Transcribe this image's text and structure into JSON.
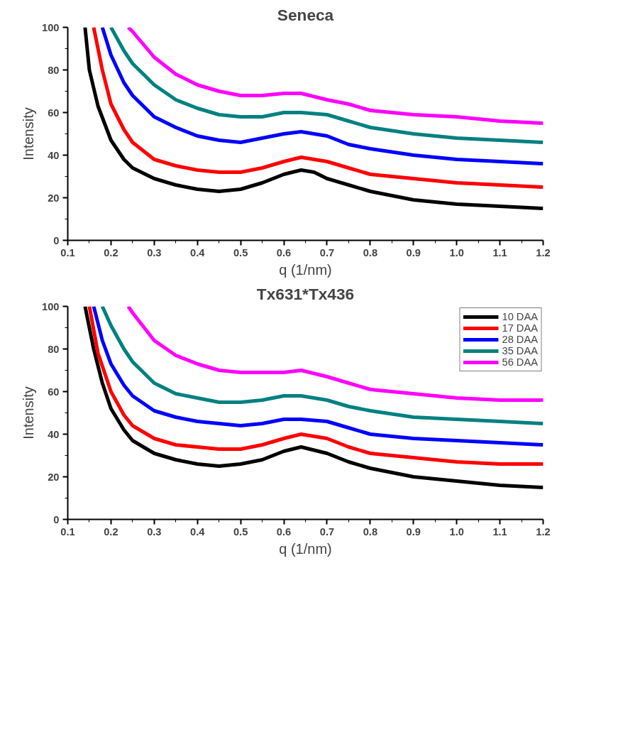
{
  "chart_data": [
    {
      "type": "line",
      "title": "Seneca",
      "xlabel": "q (1/nm)",
      "ylabel": "Intensity",
      "xlim": [
        0.1,
        1.2
      ],
      "ylim": [
        0,
        100
      ],
      "xticks": [
        0.1,
        0.2,
        0.3,
        0.4,
        0.5,
        0.6,
        0.7,
        0.8,
        0.9,
        {
          "value": 1,
          "label": "1.0"
        },
        1.1,
        1.2
      ],
      "yticks": [
        0,
        20,
        40,
        60,
        80,
        100
      ],
      "series": [
        {
          "color": "#000000",
          "x": [
            0.14,
            0.15,
            0.17,
            0.2,
            0.23,
            0.25,
            0.3,
            0.35,
            0.4,
            0.45,
            0.5,
            0.55,
            0.6,
            0.64,
            0.67,
            0.7,
            0.75,
            0.8,
            0.85,
            0.9,
            1.0,
            1.1,
            1.2
          ],
          "values": [
            100,
            80,
            63,
            47,
            38,
            34,
            29,
            26,
            24,
            23,
            24,
            27,
            31,
            33,
            32,
            29,
            26,
            23,
            21,
            19,
            17,
            16,
            15
          ]
        },
        {
          "color": "#ff0000",
          "x": [
            0.16,
            0.18,
            0.2,
            0.23,
            0.25,
            0.3,
            0.35,
            0.4,
            0.45,
            0.5,
            0.55,
            0.6,
            0.64,
            0.7,
            0.75,
            0.8,
            0.9,
            1.0,
            1.1,
            1.2
          ],
          "values": [
            100,
            80,
            64,
            52,
            46,
            38,
            35,
            33,
            32,
            32,
            34,
            37,
            39,
            37,
            34,
            31,
            29,
            27,
            26,
            25
          ]
        },
        {
          "color": "#0000ff",
          "x": [
            0.18,
            0.2,
            0.23,
            0.25,
            0.3,
            0.35,
            0.4,
            0.45,
            0.5,
            0.55,
            0.6,
            0.64,
            0.7,
            0.75,
            0.8,
            0.9,
            1.0,
            1.1,
            1.2
          ],
          "values": [
            100,
            87,
            74,
            68,
            58,
            53,
            49,
            47,
            46,
            48,
            50,
            51,
            49,
            45,
            43,
            40,
            38,
            37,
            36
          ]
        },
        {
          "color": "#008080",
          "x": [
            0.2,
            0.23,
            0.25,
            0.3,
            0.35,
            0.4,
            0.45,
            0.5,
            0.55,
            0.6,
            0.64,
            0.7,
            0.75,
            0.8,
            0.9,
            1.0,
            1.1,
            1.2
          ],
          "values": [
            100,
            89,
            83,
            73,
            66,
            62,
            59,
            58,
            58,
            60,
            60,
            59,
            56,
            53,
            50,
            48,
            47,
            46
          ]
        },
        {
          "color": "#ff00ff",
          "x": [
            0.24,
            0.25,
            0.3,
            0.35,
            0.4,
            0.45,
            0.5,
            0.55,
            0.6,
            0.64,
            0.7,
            0.75,
            0.8,
            0.9,
            1.0,
            1.1,
            1.2
          ],
          "values": [
            100,
            98,
            86,
            78,
            73,
            70,
            68,
            68,
            69,
            69,
            66,
            64,
            61,
            59,
            58,
            56,
            55
          ]
        }
      ]
    },
    {
      "type": "line",
      "title": "Tx631*Tx436",
      "xlabel": "q (1/nm)",
      "ylabel": "Intensity",
      "xlim": [
        0.1,
        1.2
      ],
      "ylim": [
        0,
        100
      ],
      "xticks": [
        0.1,
        0.2,
        0.3,
        0.4,
        0.5,
        0.6,
        0.7,
        0.8,
        0.9,
        {
          "value": 1,
          "label": "1.0"
        },
        1.1,
        1.2
      ],
      "yticks": [
        0,
        20,
        40,
        60,
        80,
        100
      ],
      "legend": "top right",
      "series": [
        {
          "name": "10 DAA",
          "color": "#000000",
          "x": [
            0.14,
            0.16,
            0.18,
            0.2,
            0.23,
            0.25,
            0.3,
            0.35,
            0.4,
            0.45,
            0.5,
            0.55,
            0.6,
            0.64,
            0.7,
            0.75,
            0.8,
            0.9,
            1.0,
            1.1,
            1.2
          ],
          "values": [
            100,
            80,
            64,
            52,
            42,
            37,
            31,
            28,
            26,
            25,
            26,
            28,
            32,
            34,
            31,
            27,
            24,
            20,
            18,
            16,
            15
          ]
        },
        {
          "name": "17 DAA",
          "color": "#ff0000",
          "x": [
            0.15,
            0.17,
            0.2,
            0.23,
            0.25,
            0.3,
            0.35,
            0.4,
            0.45,
            0.5,
            0.55,
            0.6,
            0.64,
            0.7,
            0.75,
            0.8,
            0.9,
            1.0,
            1.1,
            1.2
          ],
          "values": [
            100,
            78,
            60,
            49,
            44,
            38,
            35,
            34,
            33,
            33,
            35,
            38,
            40,
            38,
            34,
            31,
            29,
            27,
            26,
            26
          ]
        },
        {
          "name": "28 DAA",
          "color": "#0000ff",
          "x": [
            0.16,
            0.18,
            0.2,
            0.23,
            0.25,
            0.3,
            0.35,
            0.4,
            0.45,
            0.5,
            0.55,
            0.6,
            0.64,
            0.7,
            0.75,
            0.8,
            0.9,
            1.0,
            1.1,
            1.2
          ],
          "values": [
            100,
            84,
            73,
            63,
            58,
            51,
            48,
            46,
            45,
            44,
            45,
            47,
            47,
            46,
            43,
            40,
            38,
            37,
            36,
            35
          ]
        },
        {
          "name": "35 DAA",
          "color": "#008080",
          "x": [
            0.18,
            0.2,
            0.23,
            0.25,
            0.3,
            0.35,
            0.4,
            0.45,
            0.5,
            0.55,
            0.6,
            0.64,
            0.7,
            0.75,
            0.8,
            0.9,
            1.0,
            1.1,
            1.2
          ],
          "values": [
            100,
            91,
            80,
            74,
            64,
            59,
            57,
            55,
            55,
            56,
            58,
            58,
            56,
            53,
            51,
            48,
            47,
            46,
            45
          ]
        },
        {
          "name": "56 DAA",
          "color": "#ff00ff",
          "x": [
            0.24,
            0.25,
            0.3,
            0.35,
            0.4,
            0.45,
            0.5,
            0.55,
            0.6,
            0.64,
            0.7,
            0.75,
            0.8,
            0.9,
            1.0,
            1.1,
            1.2
          ],
          "values": [
            100,
            97,
            84,
            77,
            73,
            70,
            69,
            69,
            69,
            70,
            67,
            64,
            61,
            59,
            57,
            56,
            56
          ]
        }
      ]
    }
  ]
}
